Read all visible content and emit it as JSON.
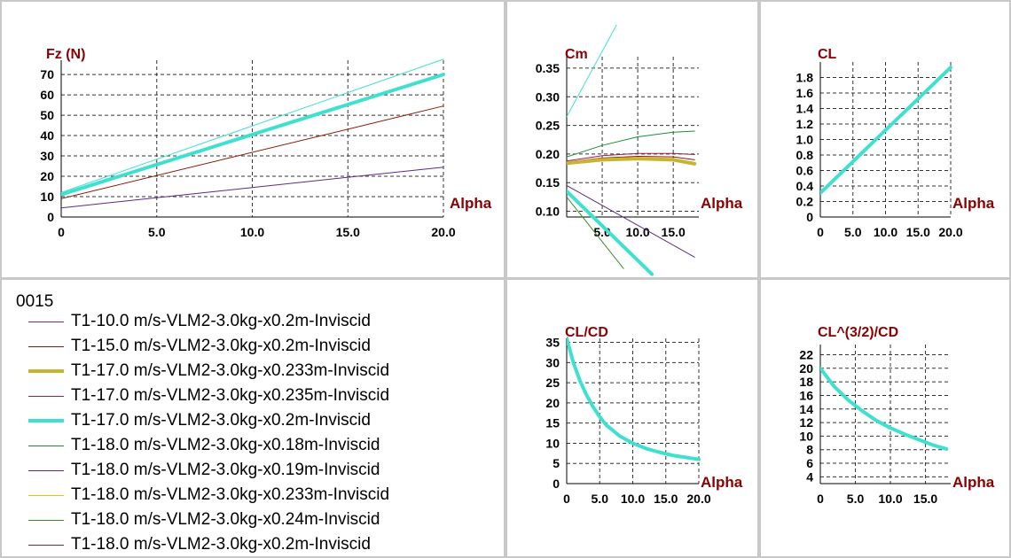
{
  "colors": {
    "grid": "#333333",
    "axis": "#000000",
    "label": "#8b0000"
  },
  "legend": {
    "title": "0015",
    "items": [
      {
        "label": "T1-10.0 m/s-VLM2-3.0kg-x0.2m-Inviscid",
        "color": "#a0204a",
        "width": 1
      },
      {
        "label": "T1-15.0 m/s-VLM2-3.0kg-x0.2m-Inviscid",
        "color": "#8b1a00",
        "width": 1
      },
      {
        "label": "T1-17.0 m/s-VLM2-3.0kg-x0.233m-Inviscid",
        "color": "#c8b432",
        "width": 4
      },
      {
        "label": "T1-17.0 m/s-VLM2-3.0kg-x0.235m-Inviscid",
        "color": "#a0204a",
        "width": 1
      },
      {
        "label": "T1-17.0 m/s-VLM2-3.0kg-x0.2m-Inviscid",
        "color": "#40e0d0",
        "width": 4
      },
      {
        "label": "T1-18.0 m/s-VLM2-3.0kg-x0.18m-Inviscid",
        "color": "#1e8c3c",
        "width": 1
      },
      {
        "label": "T1-18.0 m/s-VLM2-3.0kg-x0.19m-Inviscid",
        "color": "#7a1a8c",
        "width": 1
      },
      {
        "label": "T1-18.0 m/s-VLM2-3.0kg-x0.233m-Inviscid",
        "color": "#e6c800",
        "width": 1
      },
      {
        "label": "T1-18.0 m/s-VLM2-3.0kg-x0.24m-Inviscid",
        "color": "#3c8c28",
        "width": 1
      },
      {
        "label": "T1-18.0 m/s-VLM2-3.0kg-x0.2m-Inviscid",
        "color": "#5a2a8c",
        "width": 1
      }
    ]
  },
  "chart_data": [
    {
      "id": "fz",
      "type": "line",
      "title": "Fz (N)",
      "xlabel": "Alpha",
      "ylabel": "Fz (N)",
      "xlim": [
        0,
        20
      ],
      "ylim": [
        0,
        77
      ],
      "xticks": [
        0,
        5,
        10,
        15,
        20
      ],
      "xtick_labels": [
        "0",
        "5.0",
        "10.0",
        "15.0",
        "20.0"
      ],
      "yticks": [
        0,
        10,
        20,
        30,
        40,
        50,
        60,
        70
      ],
      "ytick_labels": [
        "0",
        "10",
        "20",
        "30",
        "40",
        "50",
        "60",
        "70"
      ],
      "series": [
        {
          "color": "#5a2a8c",
          "width": 1,
          "x": [
            0,
            20
          ],
          "y": [
            4.5,
            24.5
          ]
        },
        {
          "color": "#8b1a00",
          "width": 1,
          "x": [
            0,
            20
          ],
          "y": [
            9,
            54.5
          ]
        },
        {
          "color": "#40e0d0",
          "width": 4,
          "x": [
            0,
            20
          ],
          "y": [
            11,
            70
          ]
        },
        {
          "color": "#40e0d0",
          "width": 1,
          "x": [
            0,
            20
          ],
          "y": [
            12,
            77.5
          ]
        }
      ]
    },
    {
      "id": "cm",
      "type": "line",
      "title": "Cm",
      "xlabel": "Alpha",
      "ylabel": "Cm",
      "xlim": [
        0,
        18.6
      ],
      "ylim": [
        0.09,
        0.37
      ],
      "xticks": [
        0,
        5,
        10,
        15
      ],
      "xtick_labels": [
        "",
        "5.0",
        "10.0",
        "15.0"
      ],
      "yticks": [
        0.1,
        0.15,
        0.2,
        0.25,
        0.3,
        0.35
      ],
      "ytick_labels": [
        "0.10",
        "0.15",
        "0.20",
        "0.25",
        "0.30",
        "0.35"
      ],
      "series": [
        {
          "color": "#40e0d0",
          "width": 1,
          "x": [
            0,
            7
          ],
          "y": [
            0.265,
            0.425
          ]
        },
        {
          "color": "#1e8c3c",
          "width": 1,
          "x": [
            0,
            5,
            10,
            15,
            18
          ],
          "y": [
            0.195,
            0.215,
            0.23,
            0.238,
            0.24
          ]
        },
        {
          "color": "#a0204a",
          "width": 1,
          "x": [
            0,
            5,
            10,
            15,
            18
          ],
          "y": [
            0.188,
            0.197,
            0.201,
            0.201,
            0.199
          ]
        },
        {
          "color": "#8b1a00",
          "width": 1,
          "x": [
            0,
            5,
            10,
            15,
            18
          ],
          "y": [
            0.186,
            0.193,
            0.196,
            0.195,
            0.19
          ]
        },
        {
          "color": "#c8b432",
          "width": 4,
          "x": [
            0,
            5,
            10,
            15,
            18
          ],
          "y": [
            0.184,
            0.19,
            0.192,
            0.19,
            0.183
          ]
        },
        {
          "color": "#5a2a8c",
          "width": 1,
          "x": [
            0,
            18
          ],
          "y": [
            0.145,
            0.02
          ]
        },
        {
          "color": "#40e0d0",
          "width": 4,
          "x": [
            0,
            12
          ],
          "y": [
            0.135,
            -0.01
          ]
        },
        {
          "color": "#3c8c28",
          "width": 1,
          "x": [
            0,
            8
          ],
          "y": [
            0.125,
            0.0
          ]
        }
      ]
    },
    {
      "id": "cl",
      "type": "line",
      "title": "CL",
      "xlabel": "Alpha",
      "ylabel": "CL",
      "xlim": [
        0,
        20
      ],
      "ylim": [
        0,
        2.0
      ],
      "xticks": [
        0,
        5,
        10,
        15,
        20
      ],
      "xtick_labels": [
        "0",
        "5.0",
        "10.0",
        "15.0",
        "20.0"
      ],
      "yticks": [
        0,
        0.2,
        0.4,
        0.6,
        0.8,
        1.0,
        1.2,
        1.4,
        1.6,
        1.8
      ],
      "ytick_labels": [
        "0",
        "0.2",
        "0.4",
        "0.6",
        "0.8",
        "1.0",
        "1.2",
        "1.4",
        "1.6",
        "1.8"
      ],
      "series": [
        {
          "color": "#40e0d0",
          "width": 4,
          "x": [
            0,
            20
          ],
          "y": [
            0.31,
            1.93
          ]
        }
      ]
    },
    {
      "id": "clcd",
      "type": "line",
      "title": "CL/CD",
      "xlabel": "Alpha",
      "ylabel": "CL/CD",
      "xlim": [
        0,
        20
      ],
      "ylim": [
        0,
        36
      ],
      "xticks": [
        0,
        5,
        10,
        15,
        20
      ],
      "xtick_labels": [
        "0",
        "5.0",
        "10.0",
        "15.0",
        "20.0"
      ],
      "yticks": [
        0,
        5,
        10,
        15,
        20,
        25,
        30,
        35
      ],
      "ytick_labels": [
        "0",
        "5",
        "10",
        "15",
        "20",
        "25",
        "30",
        "35"
      ],
      "series": [
        {
          "color": "#40e0d0",
          "width": 4,
          "x": [
            0,
            1,
            2,
            3,
            4,
            5,
            6,
            8,
            10,
            12,
            14,
            16,
            18,
            20
          ],
          "y": [
            36,
            30,
            25.5,
            22,
            19,
            16.5,
            14.5,
            11.8,
            10,
            8.7,
            7.8,
            7,
            6.5,
            6
          ]
        }
      ]
    },
    {
      "id": "cl32cd",
      "type": "line",
      "title": "CL^(3/2)/CD",
      "xlabel": "Alpha",
      "ylabel": "CL^(3/2)/CD",
      "xlim": [
        0,
        18.6
      ],
      "ylim": [
        3,
        23.5
      ],
      "xticks": [
        0,
        5,
        10,
        15
      ],
      "xtick_labels": [
        "0",
        "5.0",
        "10.0",
        "15.0"
      ],
      "yticks": [
        4,
        6,
        8,
        10,
        12,
        14,
        16,
        18,
        20,
        22
      ],
      "ytick_labels": [
        "4",
        "6",
        "8",
        "10",
        "12",
        "14",
        "16",
        "18",
        "20",
        "22"
      ],
      "series": [
        {
          "color": "#40e0d0",
          "width": 4,
          "x": [
            0,
            2,
            4,
            6,
            8,
            10,
            12,
            14,
            16,
            18
          ],
          "y": [
            20,
            17.3,
            15.3,
            13.7,
            12.3,
            11.2,
            10.3,
            9.5,
            8.7,
            8.1
          ]
        }
      ]
    }
  ]
}
